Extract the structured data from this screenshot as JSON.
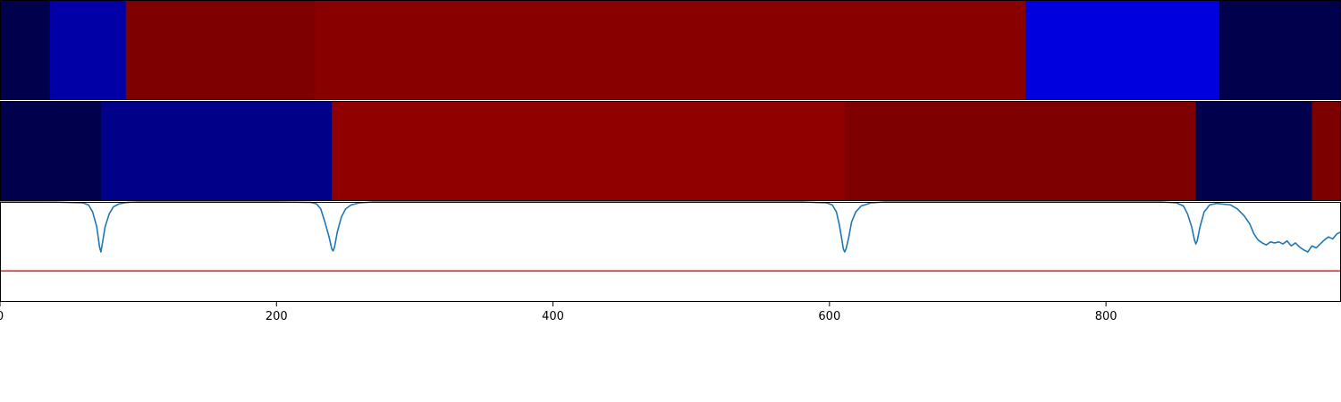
{
  "chart_data": {
    "type": "heatmap",
    "x_axis": {
      "range": [
        0,
        970
      ],
      "ticks": [
        0,
        200,
        400,
        600,
        800
      ],
      "tick_labels": [
        "0",
        "200",
        "400",
        "600",
        "800"
      ]
    },
    "panels": [
      {
        "type": "heatmap",
        "segments": [
          {
            "start": 0,
            "end": 36,
            "color": "#00004c"
          },
          {
            "start": 36,
            "end": 91,
            "color": "#0000a6"
          },
          {
            "start": 91,
            "end": 228,
            "color": "#7e0000"
          },
          {
            "start": 228,
            "end": 742,
            "color": "#880000"
          },
          {
            "start": 742,
            "end": 882,
            "color": "#0000de"
          },
          {
            "start": 882,
            "end": 970,
            "color": "#00004c"
          }
        ]
      },
      {
        "type": "heatmap",
        "segments": [
          {
            "start": 0,
            "end": 73,
            "color": "#00004c"
          },
          {
            "start": 73,
            "end": 240,
            "color": "#000088"
          },
          {
            "start": 240,
            "end": 611,
            "color": "#900000"
          },
          {
            "start": 611,
            "end": 865,
            "color": "#7e0000"
          },
          {
            "start": 865,
            "end": 949,
            "color": "#00004c"
          },
          {
            "start": 949,
            "end": 970,
            "color": "#7c0000"
          }
        ]
      },
      {
        "type": "line",
        "ylim": [
          0,
          1
        ],
        "series": [
          {
            "color": "#1f77b4",
            "x": [
              0,
              40,
              60,
              64,
              67,
              70,
              72,
              73,
              74,
              76,
              79,
              82,
              86,
              92,
              100,
              120,
              200,
              225,
              229,
              232,
              235,
              238,
              240,
              241,
              242,
              244,
              247,
              250,
              254,
              260,
              270,
              300,
              580,
              598,
              602,
              605,
              607,
              609,
              610,
              611,
              612,
              614,
              616,
              619,
              623,
              630,
              640,
              660,
              840,
              851,
              856,
              859,
              862,
              864,
              865,
              866,
              868,
              871,
              875,
              880,
              890,
              895,
              900,
              904,
              907,
              910,
              913,
              916,
              919,
              922,
              925,
              928,
              931,
              934,
              937,
              940,
              943,
              946,
              949,
              952,
              955,
              958,
              961,
              964,
              967,
              970
            ],
            "y": [
              1.0,
              0.998,
              0.99,
              0.97,
              0.9,
              0.75,
              0.55,
              0.5,
              0.58,
              0.75,
              0.88,
              0.95,
              0.98,
              0.995,
              1.0,
              1.0,
              1.0,
              0.995,
              0.98,
              0.93,
              0.8,
              0.65,
              0.53,
              0.51,
              0.55,
              0.7,
              0.85,
              0.93,
              0.97,
              0.99,
              1.0,
              1.0,
              1.0,
              0.99,
              0.97,
              0.9,
              0.78,
              0.62,
              0.53,
              0.5,
              0.53,
              0.65,
              0.8,
              0.9,
              0.96,
              0.99,
              1.0,
              1.0,
              1.0,
              0.99,
              0.96,
              0.88,
              0.75,
              0.62,
              0.58,
              0.61,
              0.75,
              0.9,
              0.97,
              0.985,
              0.97,
              0.93,
              0.86,
              0.78,
              0.68,
              0.62,
              0.59,
              0.57,
              0.6,
              0.59,
              0.6,
              0.58,
              0.61,
              0.56,
              0.59,
              0.55,
              0.52,
              0.5,
              0.56,
              0.54,
              0.58,
              0.62,
              0.65,
              0.63,
              0.68,
              0.7
            ]
          },
          {
            "color": "#d62728",
            "x": [
              0,
              970
            ],
            "y": [
              0.31,
              0.31
            ]
          }
        ]
      }
    ]
  }
}
